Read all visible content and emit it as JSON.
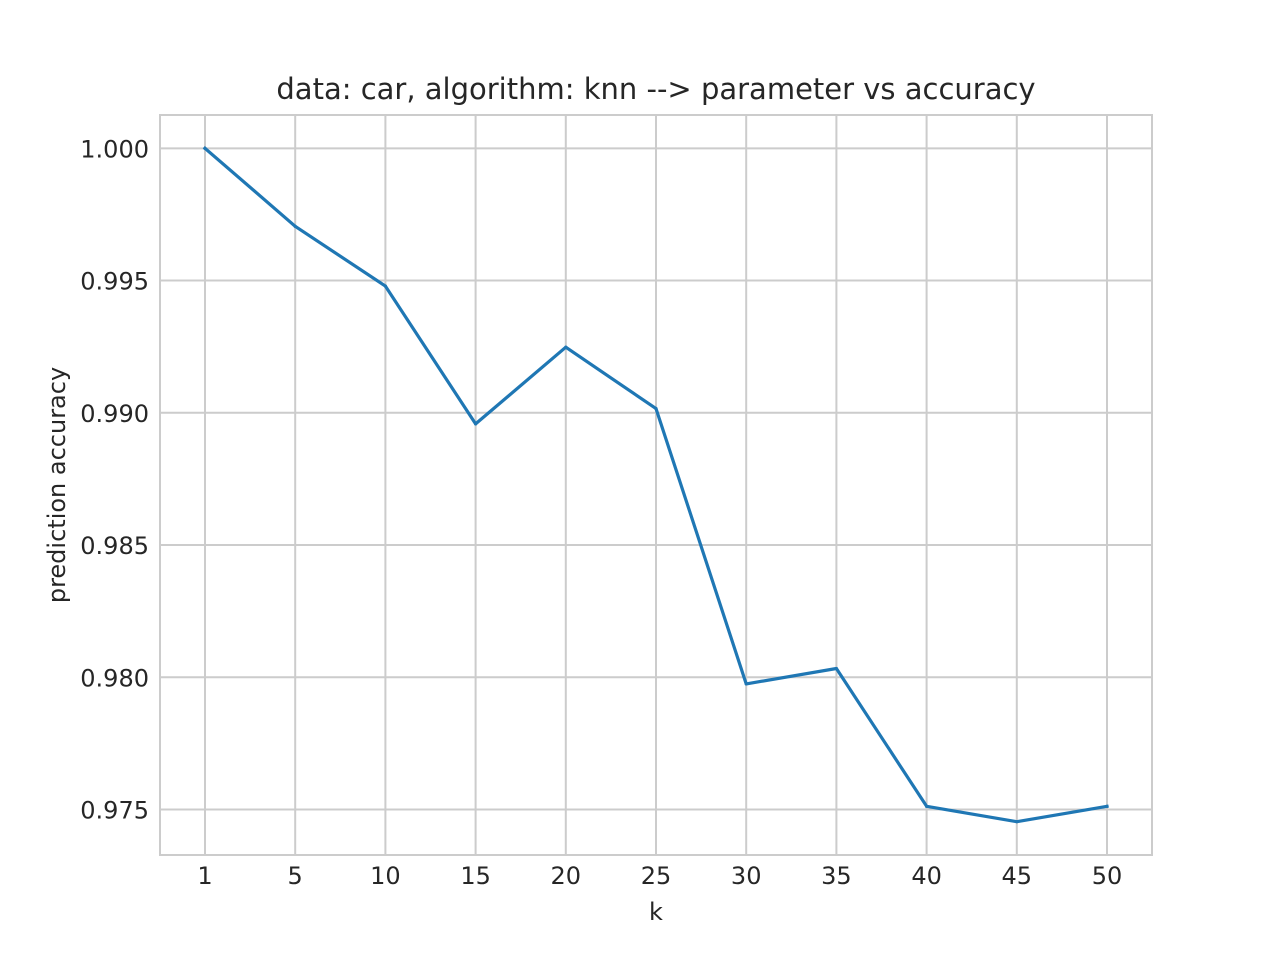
{
  "chart_data": {
    "type": "line",
    "title": "data: car, algorithm: knn --> parameter vs accuracy",
    "xlabel": "k",
    "ylabel": "prediction accuracy",
    "x": [
      "1",
      "5",
      "10",
      "15",
      "20",
      "25",
      "30",
      "35",
      "40",
      "45",
      "50"
    ],
    "series": [
      {
        "values": [
          1.0,
          0.99705,
          0.99479,
          0.98958,
          0.99248,
          0.99016,
          0.97975,
          0.98033,
          0.97512,
          0.97454,
          0.97512
        ],
        "color": "#1f77b4"
      }
    ],
    "y_ticks": [
      "0.975",
      "0.980",
      "0.985",
      "0.990",
      "0.995",
      "1.000"
    ],
    "ylim": [
      0.97328,
      1.00126
    ],
    "grid": true,
    "legend": "none"
  }
}
